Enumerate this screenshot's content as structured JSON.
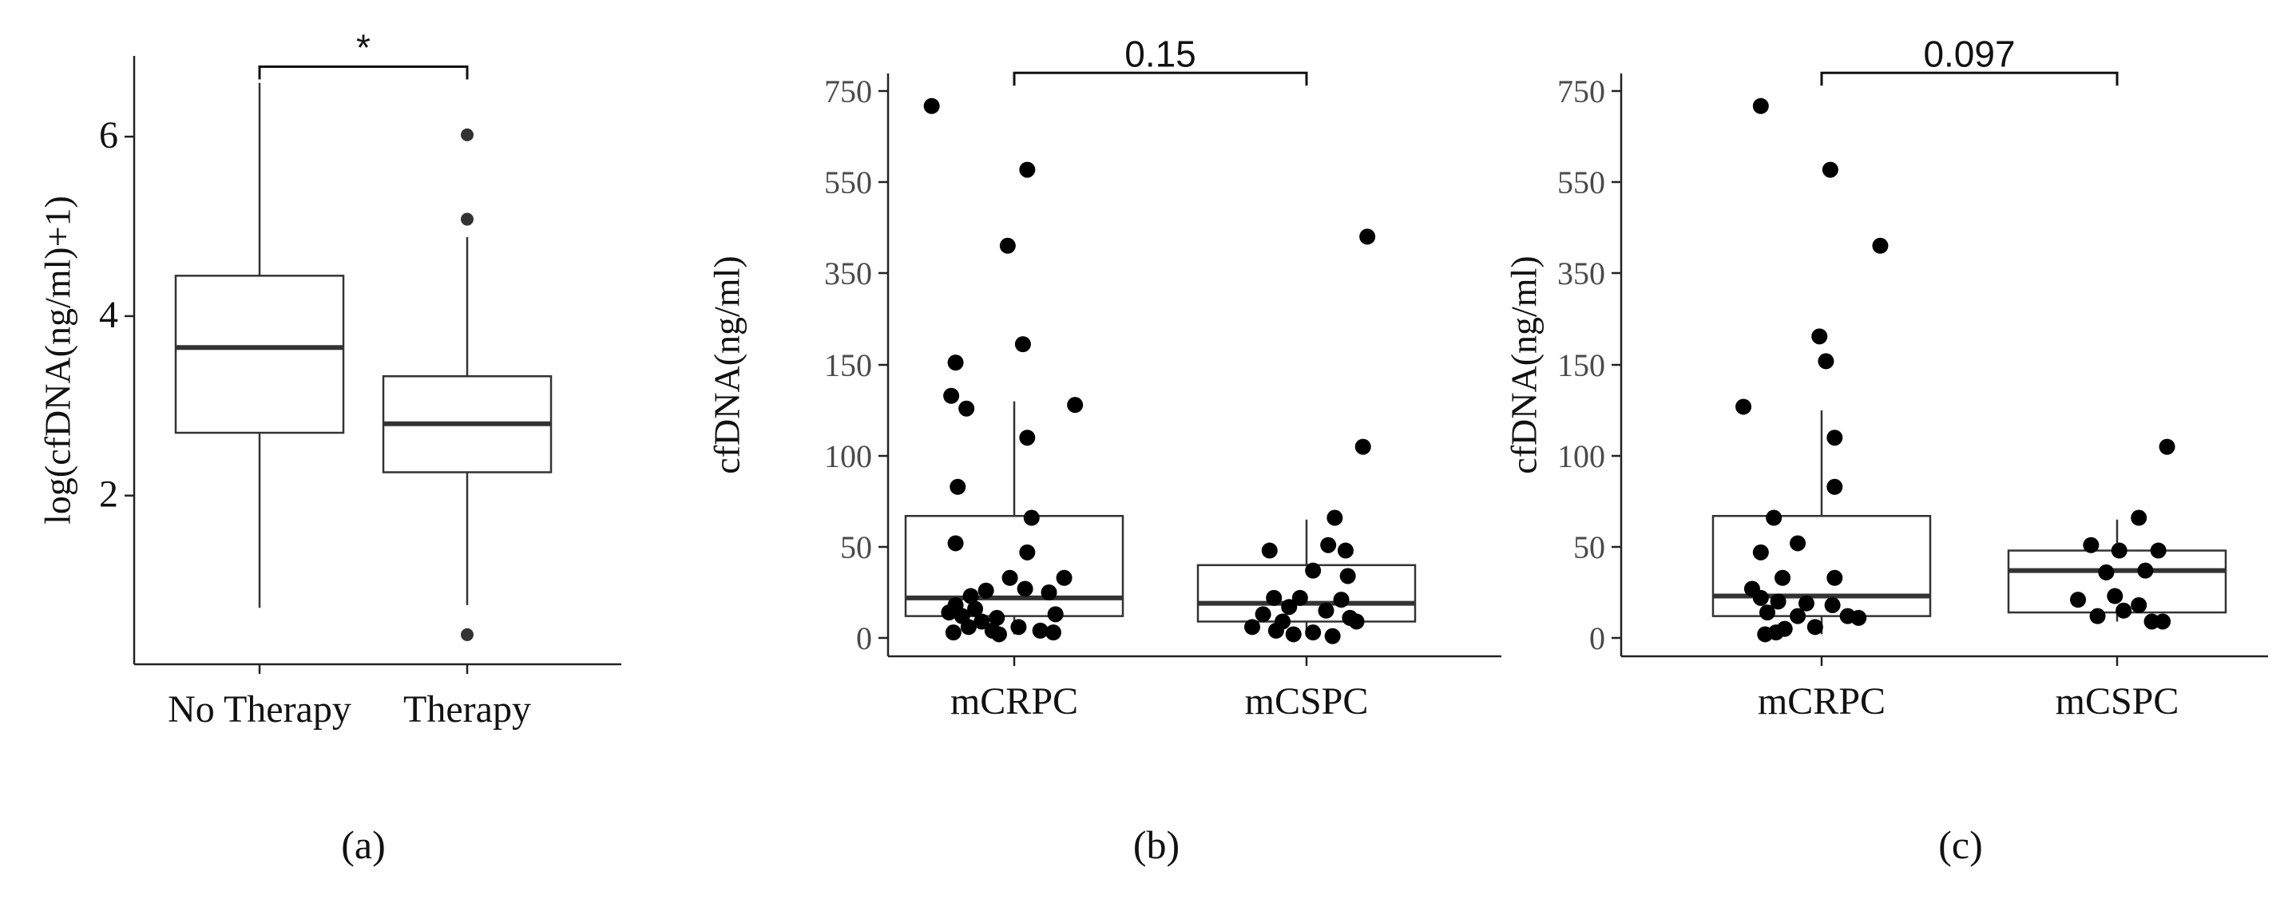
{
  "chart_data": [
    {
      "type": "box",
      "panel_label": "(a)",
      "ylabel": "log(cfDNA(ng/ml)+1)",
      "ylim": [
        0.12,
        6.9
      ],
      "yticks": [
        2,
        4,
        6
      ],
      "ytick_labels": [
        "2",
        "4",
        "6"
      ],
      "categories": [
        "No Therapy",
        "Therapy"
      ],
      "boxes": [
        {
          "whisker_low": 0.75,
          "q1": 2.7,
          "median": 3.65,
          "q3": 4.45,
          "whisker_high": 6.6,
          "outliers": []
        },
        {
          "whisker_low": 0.78,
          "q1": 2.26,
          "median": 2.8,
          "q3": 3.33,
          "whisker_high": 4.88,
          "outliers": [
            6.02,
            5.08,
            0.45
          ]
        }
      ],
      "points": [],
      "significance": {
        "label": "*",
        "from": 0,
        "to": 1,
        "y": 6.78
      }
    },
    {
      "type": "box",
      "panel_label": "(b)",
      "ylabel": "cfDNA(ng/ml)",
      "ylim": [
        -25,
        845
      ],
      "yticks": [
        0,
        50,
        100,
        150,
        350,
        550,
        750
      ],
      "ytick_labels": [
        "0",
        "50",
        "100",
        "150",
        "350",
        "550",
        "750"
      ],
      "categories": [
        "mCRPC",
        "mCSPC"
      ],
      "boxes": [
        {
          "whisker_low": 2,
          "q1": 12,
          "median": 22,
          "q3": 67,
          "whisker_high": 130,
          "outliers": []
        },
        {
          "whisker_low": 1,
          "q1": 9,
          "median": 19,
          "q3": 40,
          "whisker_high": 65,
          "outliers": []
        }
      ],
      "points": [
        [
          {
            "x": -0.38,
            "y": 717
          },
          {
            "x": 0.06,
            "y": 577
          },
          {
            "x": -0.03,
            "y": 410
          },
          {
            "x": 0.04,
            "y": 195
          },
          {
            "x": -0.27,
            "y": 155
          },
          {
            "x": -0.29,
            "y": 133
          },
          {
            "x": -0.22,
            "y": 126
          },
          {
            "x": 0.28,
            "y": 128
          },
          {
            "x": 0.06,
            "y": 110
          },
          {
            "x": -0.26,
            "y": 83
          },
          {
            "x": 0.08,
            "y": 66
          },
          {
            "x": -0.27,
            "y": 52
          },
          {
            "x": 0.06,
            "y": 47
          },
          {
            "x": -0.02,
            "y": 33
          },
          {
            "x": 0.23,
            "y": 33
          },
          {
            "x": 0.05,
            "y": 27
          },
          {
            "x": -0.13,
            "y": 26
          },
          {
            "x": -0.2,
            "y": 23
          },
          {
            "x": 0.16,
            "y": 25
          },
          {
            "x": -0.27,
            "y": 18
          },
          {
            "x": -0.18,
            "y": 16
          },
          {
            "x": -0.3,
            "y": 14
          },
          {
            "x": -0.24,
            "y": 12
          },
          {
            "x": 0.19,
            "y": 13
          },
          {
            "x": -0.08,
            "y": 11
          },
          {
            "x": -0.15,
            "y": 9
          },
          {
            "x": -0.21,
            "y": 6
          },
          {
            "x": 0.02,
            "y": 6
          },
          {
            "x": -0.1,
            "y": 4
          },
          {
            "x": 0.12,
            "y": 4
          },
          {
            "x": -0.28,
            "y": 3
          },
          {
            "x": -0.07,
            "y": 2
          },
          {
            "x": 0.18,
            "y": 3
          }
        ],
        [
          {
            "x": 0.28,
            "y": 430
          },
          {
            "x": 0.26,
            "y": 105
          },
          {
            "x": 0.13,
            "y": 66
          },
          {
            "x": 0.1,
            "y": 51
          },
          {
            "x": -0.17,
            "y": 48
          },
          {
            "x": 0.18,
            "y": 48
          },
          {
            "x": 0.03,
            "y": 37
          },
          {
            "x": 0.19,
            "y": 34
          },
          {
            "x": -0.15,
            "y": 22
          },
          {
            "x": -0.03,
            "y": 22
          },
          {
            "x": 0.16,
            "y": 21
          },
          {
            "x": -0.08,
            "y": 17
          },
          {
            "x": 0.09,
            "y": 15
          },
          {
            "x": -0.2,
            "y": 13
          },
          {
            "x": 0.2,
            "y": 11
          },
          {
            "x": -0.11,
            "y": 9
          },
          {
            "x": 0.23,
            "y": 9
          },
          {
            "x": -0.25,
            "y": 6
          },
          {
            "x": -0.14,
            "y": 4
          },
          {
            "x": 0.03,
            "y": 3
          },
          {
            "x": -0.06,
            "y": 2
          },
          {
            "x": 0.12,
            "y": 1
          }
        ]
      ],
      "significance": {
        "label": "0.15",
        "from": 0,
        "to": 1,
        "y": 790
      }
    },
    {
      "type": "box",
      "panel_label": "(c)",
      "ylabel": "cfDNA(ng/ml)",
      "ylim": [
        -25,
        845
      ],
      "yticks": [
        0,
        50,
        100,
        150,
        350,
        550,
        750
      ],
      "ytick_labels": [
        "0",
        "50",
        "100",
        "150",
        "350",
        "550",
        "750"
      ],
      "categories": [
        "mCRPC",
        "mCSPC"
      ],
      "boxes": [
        {
          "whisker_low": 2,
          "q1": 12,
          "median": 23,
          "q3": 67,
          "whisker_high": 125,
          "outliers": []
        },
        {
          "whisker_low": 9,
          "q1": 14,
          "median": 37,
          "q3": 48,
          "whisker_high": 65,
          "outliers": []
        }
      ],
      "points": [
        [
          {
            "x": -0.28,
            "y": 717
          },
          {
            "x": 0.04,
            "y": 577
          },
          {
            "x": 0.27,
            "y": 410
          },
          {
            "x": -0.01,
            "y": 212
          },
          {
            "x": 0.02,
            "y": 158
          },
          {
            "x": -0.36,
            "y": 127
          },
          {
            "x": 0.06,
            "y": 110
          },
          {
            "x": 0.06,
            "y": 83
          },
          {
            "x": -0.22,
            "y": 66
          },
          {
            "x": -0.11,
            "y": 52
          },
          {
            "x": -0.28,
            "y": 47
          },
          {
            "x": -0.18,
            "y": 33
          },
          {
            "x": 0.06,
            "y": 33
          },
          {
            "x": -0.32,
            "y": 27
          },
          {
            "x": -0.28,
            "y": 22
          },
          {
            "x": -0.2,
            "y": 20
          },
          {
            "x": -0.07,
            "y": 19
          },
          {
            "x": 0.05,
            "y": 18
          },
          {
            "x": -0.25,
            "y": 14
          },
          {
            "x": 0.12,
            "y": 12
          },
          {
            "x": -0.11,
            "y": 12
          },
          {
            "x": 0.17,
            "y": 11
          },
          {
            "x": -0.03,
            "y": 6
          },
          {
            "x": -0.17,
            "y": 5
          },
          {
            "x": -0.26,
            "y": 2
          },
          {
            "x": -0.21,
            "y": 3
          }
        ],
        [
          {
            "x": 0.23,
            "y": 105
          },
          {
            "x": 0.1,
            "y": 66
          },
          {
            "x": -0.12,
            "y": 51
          },
          {
            "x": 0.01,
            "y": 48
          },
          {
            "x": 0.19,
            "y": 48
          },
          {
            "x": 0.13,
            "y": 37
          },
          {
            "x": -0.05,
            "y": 36
          },
          {
            "x": -0.01,
            "y": 23
          },
          {
            "x": -0.18,
            "y": 21
          },
          {
            "x": 0.1,
            "y": 18
          },
          {
            "x": 0.03,
            "y": 15
          },
          {
            "x": -0.09,
            "y": 12
          },
          {
            "x": 0.16,
            "y": 9
          },
          {
            "x": 0.21,
            "y": 9
          }
        ]
      ],
      "significance": {
        "label": "0.097",
        "from": 0,
        "to": 1,
        "y": 790
      }
    }
  ]
}
